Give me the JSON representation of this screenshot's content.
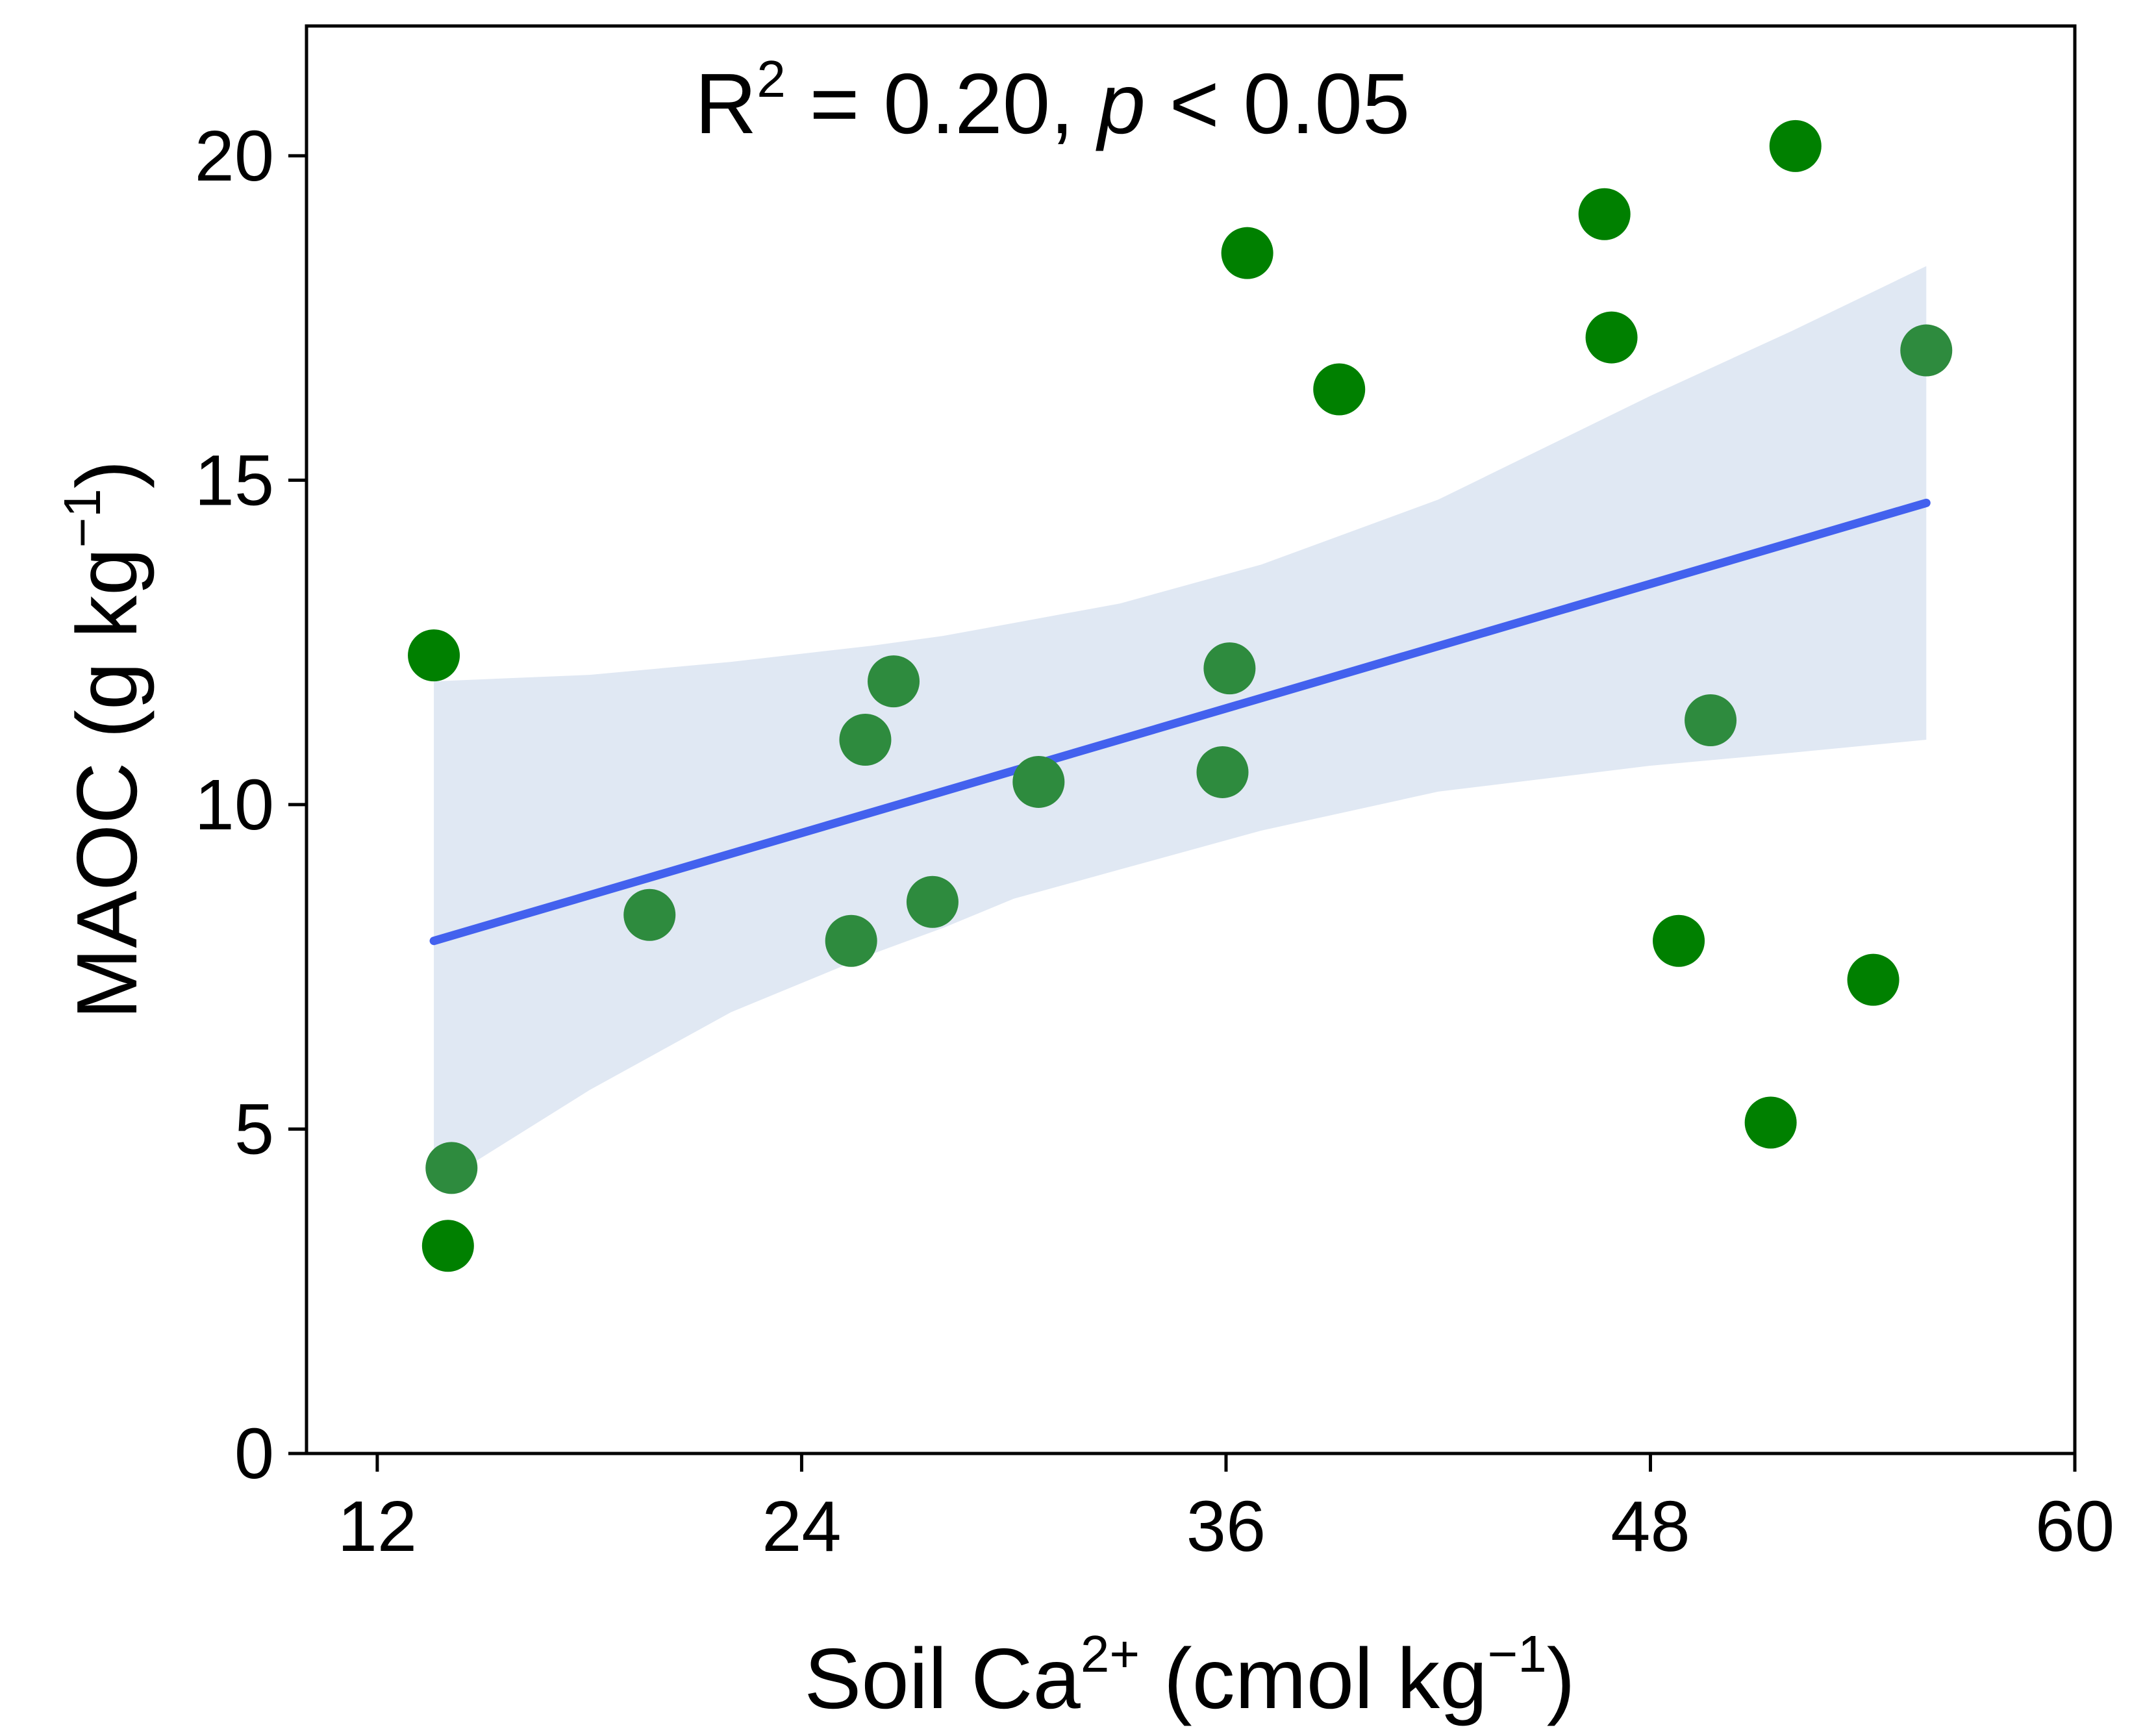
{
  "chart_data": {
    "type": "scatter",
    "annotation": {
      "r_prefix": "R",
      "r_exp": "2",
      "r_value_text": " = 0.20, ",
      "p_symbol": "p",
      "p_text": " < 0.05"
    },
    "xlabel": {
      "main": "Soil Ca",
      "sup1": "2+",
      "mid": " (cmol kg",
      "sup2": "−1",
      "end": ")"
    },
    "ylabel": {
      "main": "MAOC (g kg",
      "sup": "−1",
      "end": ")"
    },
    "xlim": [
      10,
      60
    ],
    "ylim": [
      0,
      22
    ],
    "x_ticks": [
      12,
      24,
      36,
      48,
      60
    ],
    "x_tick_labels": [
      "12",
      "24",
      "36",
      "48",
      "60"
    ],
    "y_ticks": [
      0,
      5,
      10,
      15,
      20
    ],
    "y_tick_labels": [
      "0",
      "5",
      "10",
      "15",
      "20"
    ],
    "grid": false,
    "points": [
      {
        "x": 13.6,
        "y": 12.3
      },
      {
        "x": 14.1,
        "y": 4.4
      },
      {
        "x": 14.0,
        "y": 3.2
      },
      {
        "x": 19.7,
        "y": 8.3
      },
      {
        "x": 25.4,
        "y": 7.9
      },
      {
        "x": 25.8,
        "y": 11.0
      },
      {
        "x": 26.6,
        "y": 11.9
      },
      {
        "x": 27.7,
        "y": 8.5
      },
      {
        "x": 30.7,
        "y": 10.35
      },
      {
        "x": 35.9,
        "y": 10.5
      },
      {
        "x": 36.1,
        "y": 12.1
      },
      {
        "x": 36.6,
        "y": 18.5
      },
      {
        "x": 39.2,
        "y": 16.4
      },
      {
        "x": 46.7,
        "y": 19.1
      },
      {
        "x": 46.9,
        "y": 17.2
      },
      {
        "x": 48.8,
        "y": 7.9
      },
      {
        "x": 49.7,
        "y": 11.3
      },
      {
        "x": 51.4,
        "y": 5.1
      },
      {
        "x": 52.1,
        "y": 20.15
      },
      {
        "x": 54.3,
        "y": 7.3
      },
      {
        "x": 55.8,
        "y": 17.0
      }
    ],
    "fit_line": {
      "x": [
        13.6,
        55.8
      ],
      "y": [
        7.9,
        14.65
      ]
    },
    "ci_band": {
      "x": [
        13.6,
        18.0,
        22.0,
        26.0,
        28.0,
        30.0,
        33.0,
        37.0,
        42.0,
        48.0,
        52.0,
        55.8
      ],
      "upper": [
        11.9,
        12.0,
        12.2,
        12.45,
        12.6,
        12.8,
        13.1,
        13.7,
        14.7,
        16.3,
        17.3,
        18.3
      ],
      "lower": [
        4.1,
        5.6,
        6.8,
        7.7,
        8.1,
        8.55,
        9.0,
        9.6,
        10.2,
        10.6,
        10.8,
        11.0
      ]
    },
    "colors": {
      "point": "#008000",
      "point_in_band": "#2e8b3e",
      "line": "#4361ee",
      "band": "#e0e8f3",
      "axis": "#000000"
    }
  }
}
